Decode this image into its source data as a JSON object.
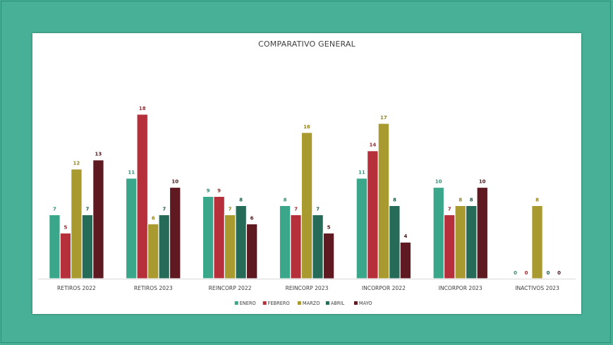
{
  "chart_data": {
    "type": "bar",
    "title": "COMPARATIVO GENERAL",
    "xlabel": "",
    "ylabel": "",
    "ylim": [
      0,
      19
    ],
    "grid": false,
    "legend_position": "bottom",
    "categories": [
      "RETIROS 2022",
      "RETIROS 2023",
      "REINCORP 2022",
      "REINCORP 2023",
      "INCORPOR 2022",
      "INCORPOR 2023",
      "INACTIVOS 2023"
    ],
    "series": [
      {
        "name": "ENERO",
        "color": "#3aa68a",
        "label_color": "#2f8f76",
        "values": [
          7,
          11,
          9,
          8,
          11,
          10,
          0
        ]
      },
      {
        "name": "FEBRERO",
        "color": "#b5303a",
        "label_color": "#a2262f",
        "values": [
          5,
          18,
          9,
          7,
          14,
          7,
          0
        ]
      },
      {
        "name": "MARZO",
        "color": "#a99a2f",
        "label_color": "#938420",
        "values": [
          12,
          6,
          7,
          16,
          17,
          8,
          8
        ]
      },
      {
        "name": "ABRIL",
        "color": "#256b58",
        "label_color": "#1f5a49",
        "values": [
          7,
          7,
          8,
          7,
          8,
          8,
          0
        ]
      },
      {
        "name": "MAYO",
        "color": "#5e1a20",
        "label_color": "#4d1419",
        "values": [
          13,
          10,
          6,
          5,
          4,
          10,
          0
        ]
      }
    ]
  }
}
